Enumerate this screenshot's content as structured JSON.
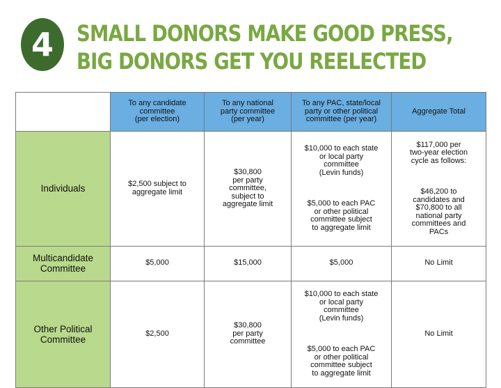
{
  "slide": {
    "badge_number": "4",
    "headline_line1": "SMALL DONORS MAKE GOOD PRESS,",
    "headline_line2": "BIG DONORS GET YOU REELECTED",
    "colors": {
      "headline": "#79a842",
      "badge": "#3d6b2e",
      "header_fill": "#6aaee2",
      "rowhead_fill": "#b9d98c"
    }
  },
  "table": {
    "columns": [
      "To any candidate\ncommittee\n(per election)",
      "To any national\nparty committee\n(per year)",
      "To any PAC, state/local\nparty or other political\ncommittee (per year)",
      "Aggregate Total"
    ],
    "rows": [
      {
        "label": "Individuals",
        "c1": "$2,500 subject to\naggregate limit",
        "c2": "$30,800\nper party\ncommittee,\nsubject to\naggregate limit",
        "c3a": "$10,000 to each state\nor local party\ncommittee\n(Levin funds)",
        "c3b": "$5,000 to each PAC\nor other political\ncommittee subject\nto aggregate limit",
        "c4a": "$117,000 per\ntwo-year election\ncycle as follows:",
        "c4b": "$46,200 to\ncandidates and\n$70,800 to all\nnational party\ncommittees and\nPACs"
      },
      {
        "label": "Multicandidate\nCommittee",
        "c1": "$5,000",
        "c2": "$15,000",
        "c3": "$5,000",
        "c4": "No Limit"
      },
      {
        "label": "Other Political\nCommittee",
        "c1": "$2,500",
        "c2": "$30,800\nper party\ncommittee",
        "c3a": "$10,000 to each state\nor local party\ncommittee\n(Levin funds)",
        "c3b": "$5,000 to each PAC\nor other political\ncommittee subject\nto aggregate limit",
        "c4": "No Limit"
      }
    ]
  }
}
